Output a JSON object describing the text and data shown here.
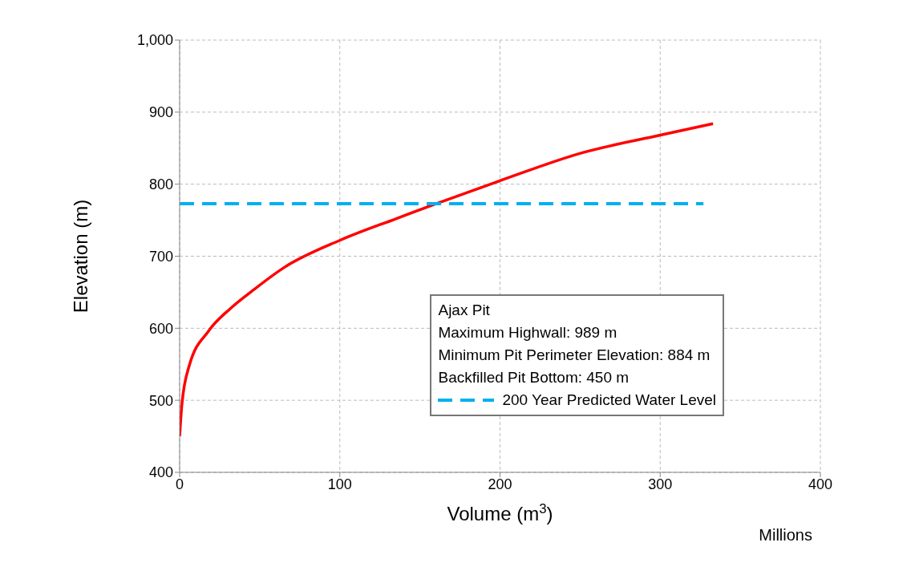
{
  "chart_data": {
    "type": "line",
    "xlabel": "Volume  (m$^{3}$)",
    "ylabel": "Elevation  (m)",
    "xlim": [
      0,
      400
    ],
    "xticks": [
      0,
      100,
      200,
      300,
      400
    ],
    "ylim": [
      400,
      1000
    ],
    "yticks": [
      400,
      500,
      600,
      700,
      800,
      900,
      {
        "value": 1000,
        "label": "1,000"
      }
    ],
    "grid": true,
    "legend": "bottom right",
    "marker": "none",
    "annotations": [
      "Ajax Pit",
      "Maximum Highwall: 989 m",
      "Minimum Pit Perimeter Elevation: 884 m",
      "Backfilled Pit Bottom: 450 m",
      "Millions"
    ],
    "series": [
      {
        "color": "#ff0000",
        "line_style": "solid",
        "x": [
          0,
          1.4,
          6,
          18,
          32,
          46,
          65,
          100,
          135,
          159,
          199,
          252,
          300,
          333
        ],
        "values": [
          450,
          494,
          548,
          596,
          628,
          653,
          684,
          722,
          752,
          772,
          804,
          844,
          868,
          884
        ]
      },
      {
        "name": "200 Year Predicted Water Level",
        "color": "#00b0f0",
        "line_style": "dashed",
        "x": [
          0,
          327
        ],
        "values": [
          773,
          773
        ]
      }
    ]
  }
}
